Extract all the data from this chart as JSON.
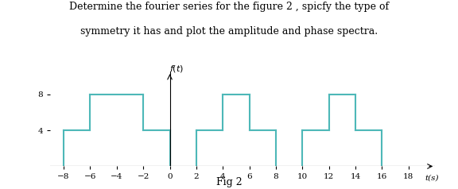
{
  "title_line1": "Determine the fourier series for the figure 2 , spicfy the type of",
  "title_line2": "symmetry it has and plot the amplitude and phase spectra.",
  "xlabel": "t(s)",
  "fig_label": "Fig 2",
  "xlim": [
    -9,
    20
  ],
  "ylim": [
    0,
    10.5
  ],
  "yticks": [
    4,
    8
  ],
  "xticks": [
    -8,
    -6,
    -4,
    -2,
    0,
    2,
    4,
    6,
    8,
    10,
    12,
    14,
    16,
    18
  ],
  "waveform_color": "#4db8b8",
  "background_color": "#ffffff",
  "segments": [
    {
      "x": [
        -8,
        -6
      ],
      "y": 4
    },
    {
      "x": [
        -6,
        -2
      ],
      "y": 8
    },
    {
      "x": [
        -2,
        0
      ],
      "y": 4
    },
    {
      "x": [
        2,
        4
      ],
      "y": 4
    },
    {
      "x": [
        4,
        6
      ],
      "y": 8
    },
    {
      "x": [
        6,
        8
      ],
      "y": 4
    },
    {
      "x": [
        10,
        12
      ],
      "y": 4
    },
    {
      "x": [
        12,
        14
      ],
      "y": 8
    },
    {
      "x": [
        14,
        16
      ],
      "y": 4
    }
  ],
  "title_fontsize": 9,
  "tick_fontsize": 7.5,
  "ylabel_fontsize": 8,
  "xlabel_fontsize": 7.5,
  "figlabel_fontsize": 9
}
